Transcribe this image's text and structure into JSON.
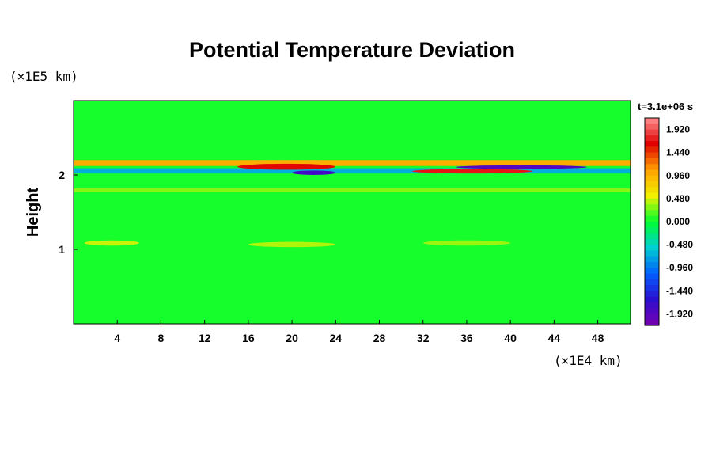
{
  "chart_data": {
    "type": "heatmap",
    "title": "Potential Temperature Deviation",
    "ylabel": "Height",
    "xunit": "(×1E4 km)",
    "yunit": "(×1E5 km)",
    "time_label": "t=3.1e+06 s",
    "xlim": [
      0,
      51
    ],
    "ylim": [
      0,
      3
    ],
    "xticks": [
      {
        "value": 4,
        "label": "4"
      },
      {
        "value": 8,
        "label": "8"
      },
      {
        "value": 12,
        "label": "12"
      },
      {
        "value": 16,
        "label": "16"
      },
      {
        "value": 20,
        "label": "20"
      },
      {
        "value": 24,
        "label": "24"
      },
      {
        "value": 28,
        "label": "28"
      },
      {
        "value": 32,
        "label": "32"
      },
      {
        "value": 36,
        "label": "36"
      },
      {
        "value": 40,
        "label": "40"
      },
      {
        "value": 44,
        "label": "44"
      },
      {
        "value": 48,
        "label": "48"
      }
    ],
    "yticks": [
      {
        "value": 1,
        "label": "1"
      },
      {
        "value": 2,
        "label": "2"
      }
    ],
    "colorbar": {
      "min": -2.16,
      "max": 2.16,
      "labels": [
        {
          "value": 1.92,
          "label": "1.920"
        },
        {
          "value": 1.44,
          "label": "1.440"
        },
        {
          "value": 0.96,
          "label": "0.960"
        },
        {
          "value": 0.48,
          "label": "0.480"
        },
        {
          "value": 0.0,
          "label": "0.000"
        },
        {
          "value": -0.48,
          "label": "-0.480"
        },
        {
          "value": -0.96,
          "label": "-0.960"
        },
        {
          "value": -1.44,
          "label": "-1.440"
        },
        {
          "value": -1.92,
          "label": "-1.920"
        }
      ]
    },
    "colors": [
      "#7a00b0",
      "#2a0fd0",
      "#0060ff",
      "#00d0d0",
      "#00ff30",
      "#f0f000",
      "#ffa000",
      "#e00000",
      "#ff9090"
    ],
    "features": [
      {
        "type": "band",
        "x": [
          0,
          51
        ],
        "y": [
          2.12,
          2.2
        ],
        "value": 1.0
      },
      {
        "type": "band",
        "x": [
          0,
          51
        ],
        "y": [
          2.02,
          2.09
        ],
        "value": -0.7
      },
      {
        "type": "blob",
        "x": [
          15,
          24
        ],
        "y": [
          2.07,
          2.15
        ],
        "value": 1.6
      },
      {
        "type": "blob",
        "x": [
          20,
          24
        ],
        "y": [
          2.0,
          2.06
        ],
        "value": -1.8
      },
      {
        "type": "blob",
        "x": [
          31,
          42
        ],
        "y": [
          2.02,
          2.08
        ],
        "value": 1.7
      },
      {
        "type": "blob",
        "x": [
          35,
          47
        ],
        "y": [
          2.08,
          2.13
        ],
        "value": -1.9
      },
      {
        "type": "band",
        "x": [
          0,
          51
        ],
        "y": [
          1.77,
          1.82
        ],
        "value": 0.3
      },
      {
        "type": "blob",
        "x": [
          1,
          6
        ],
        "y": [
          1.05,
          1.12
        ],
        "value": 0.45
      },
      {
        "type": "blob",
        "x": [
          16,
          24
        ],
        "y": [
          1.03,
          1.1
        ],
        "value": 0.4
      },
      {
        "type": "blob",
        "x": [
          32,
          40
        ],
        "y": [
          1.05,
          1.12
        ],
        "value": 0.35
      }
    ]
  }
}
